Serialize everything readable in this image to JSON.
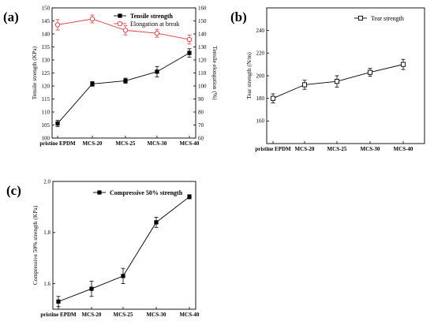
{
  "colors": {
    "series_black": "#000000",
    "series_red": "#e0383a",
    "axis": "#000000"
  },
  "chart_data": [
    {
      "panel_label": "(a)",
      "type": "line",
      "categories": [
        "pristine EPDM",
        "MCS-20",
        "MCS-25",
        "MCS-30",
        "MCS-40"
      ],
      "ylabel": "Tensile strength (KPa)",
      "y2label": "Tensile elongation (%)",
      "ylim": [
        100,
        150
      ],
      "yticks": [
        100,
        105,
        110,
        115,
        120,
        125,
        130,
        135,
        140,
        145,
        150
      ],
      "y2lim": [
        60,
        160
      ],
      "y2ticks": [
        60,
        70,
        80,
        90,
        100,
        110,
        120,
        130,
        140,
        150,
        160
      ],
      "legend_position": "top-right",
      "series": [
        {
          "name": "Tensile strength",
          "axis": "left",
          "marker": "filled-square",
          "color": "#000000",
          "values": [
            105.6,
            120.8,
            122.0,
            125.5,
            132.7
          ],
          "errors": [
            1.2,
            0.9,
            1.0,
            2.0,
            1.6
          ]
        },
        {
          "name": "Elongation at break",
          "axis": "right",
          "marker": "open-circle",
          "color": "#e0383a",
          "values": [
            147.0,
            151.5,
            142.8,
            140.5,
            135.7
          ],
          "errors": [
            4.0,
            3.0,
            3.5,
            3.0,
            3.5
          ]
        }
      ]
    },
    {
      "panel_label": "(b)",
      "type": "line",
      "categories": [
        "pristine EPDM",
        "MCS-20",
        "MCS-25",
        "MCS-30",
        "MCS-40"
      ],
      "ylabel": "Tear strength (N/m)",
      "ylim": [
        140,
        260
      ],
      "yticks": [
        160,
        180,
        200,
        220,
        240
      ],
      "legend_position": "top-right",
      "series": [
        {
          "name": "Tear strength",
          "marker": "open-square",
          "color": "#000000",
          "values": [
            180,
            192,
            195,
            203,
            210
          ],
          "errors": [
            4,
            4,
            5,
            3.5,
            4.5
          ]
        }
      ]
    },
    {
      "panel_label": "(c)",
      "type": "line",
      "categories": [
        "pristine EPDM",
        "MCS-20",
        "MCS-25",
        "MCS-30",
        "MCS-40"
      ],
      "ylabel": "Compressive 50% strength (KPa)",
      "ylim": [
        1.5,
        2.0
      ],
      "yticks": [
        1.6,
        1.8,
        2.0
      ],
      "yticklabels": [
        "1.6",
        "1.8",
        "2.0"
      ],
      "legend_position": "top-left",
      "series": [
        {
          "name": "Compressive 50% strength",
          "marker": "filled-square",
          "color": "#000000",
          "values": [
            1.53,
            1.58,
            1.63,
            1.84,
            1.94
          ],
          "errors": [
            0.02,
            0.03,
            0.03,
            0.02,
            0.008
          ]
        }
      ]
    }
  ]
}
